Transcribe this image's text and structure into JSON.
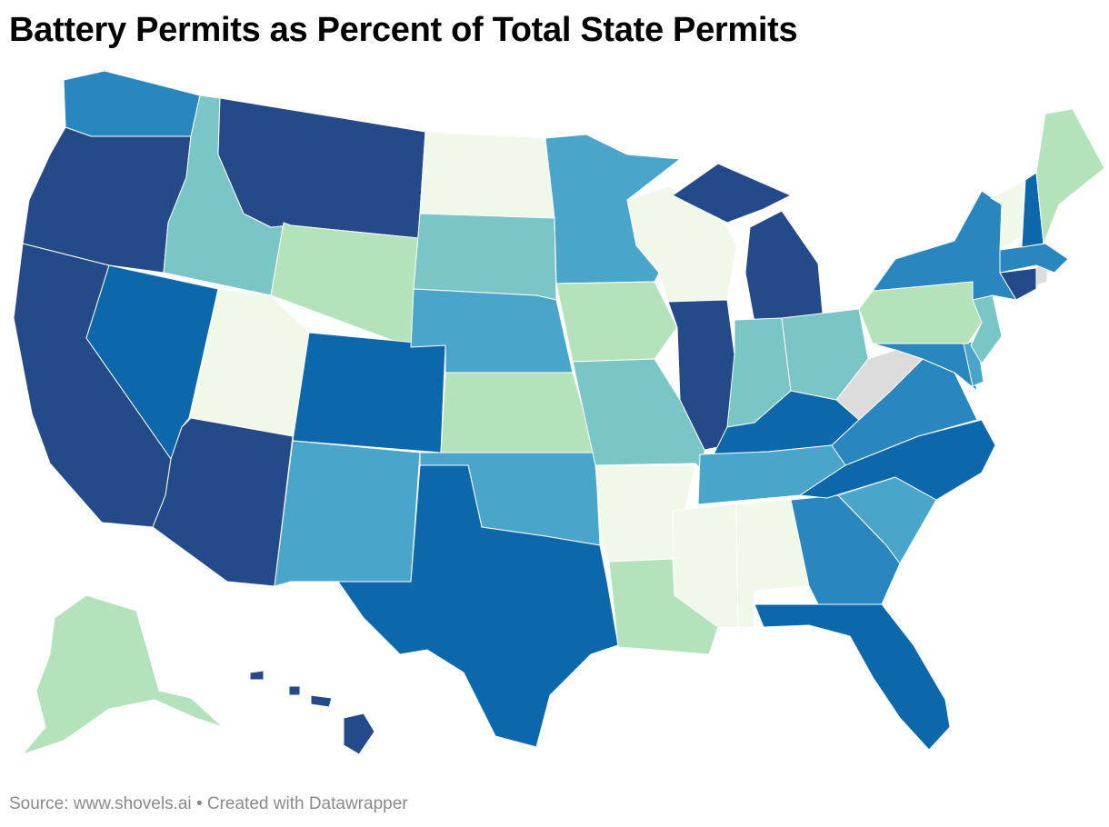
{
  "title": "Battery Permits as Percent of Total State Permits",
  "footer": {
    "source_label": "Source:",
    "source_url": "www.shovels.ai",
    "separator": "•",
    "credit": "Created with Datawrapper"
  },
  "map": {
    "type": "choropleth",
    "region": "United States",
    "legend": "none",
    "palette": {
      "level_1": "#f0f8ea",
      "level_2": "#b4e2bb",
      "level_3": "#7ac5c6",
      "level_4": "#4aa5ca",
      "level_5": "#2a86bf",
      "level_6": "#0c67ab",
      "level_7": "#254a8a",
      "no_data": "#dcdcdc"
    },
    "states": {
      "WA": 5,
      "OR": 7,
      "CA": 7,
      "ID": 3,
      "NV": 6,
      "MT": 7,
      "WY": 2,
      "UT": 1,
      "AZ": 7,
      "CO": 6,
      "NM": 4,
      "ND": 1,
      "SD": 3,
      "NE": 4,
      "KS": 2,
      "OK": 4,
      "TX": 6,
      "MN": 4,
      "IA": 2,
      "MO": 3,
      "AR": 1,
      "LA": 2,
      "WI": 1,
      "IL": 7,
      "MI": 7,
      "IN": 3,
      "OH": 3,
      "KY": 6,
      "TN": 4,
      "MS": 1,
      "AL": 1,
      "GA": 5,
      "FL": 6,
      "SC": 4,
      "NC": 6,
      "VA": 5,
      "WV": 0,
      "MD": 5,
      "DE": 4,
      "PA": 2,
      "NJ": 3,
      "NY": 5,
      "CT": 7,
      "RI": 0,
      "MA": 5,
      "VT": 1,
      "NH": 6,
      "ME": 2,
      "AK": 2,
      "HI": 7
    }
  }
}
